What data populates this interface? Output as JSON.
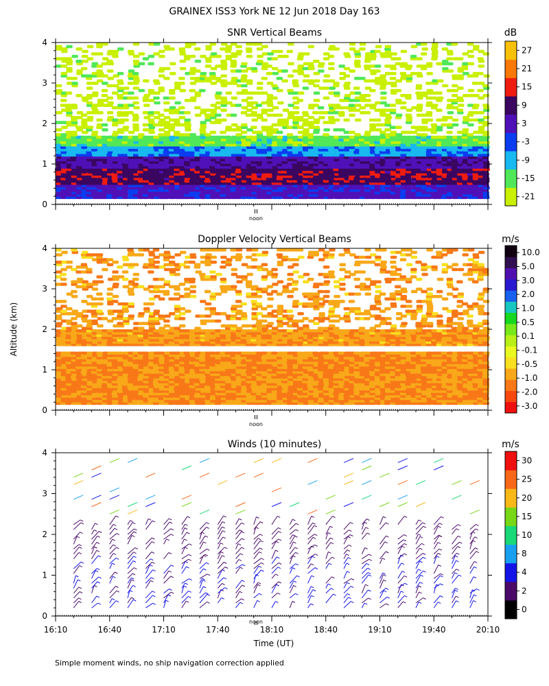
{
  "figure": {
    "title": "GRAINEX ISS3 York NE  12 Jun 2018 Day 163",
    "ylabel": "Altitude (km)",
    "xlabel": "Time (UT)",
    "footnote": "Simple moment winds, no ship navigation correction applied",
    "noon_label": "noon"
  },
  "colors": {
    "snr": [
      "#c8f000",
      "#50e858",
      "#18b8f0",
      "#0a3cf0",
      "#5010b8",
      "#3a0660",
      "#f01c10",
      "#f87808",
      "#f8c008"
    ],
    "doppler": [
      "#f01010",
      "#f84810",
      "#f87818",
      "#f8a818",
      "#f8e020",
      "#e8f820",
      "#b8f018",
      "#78e818",
      "#18d820",
      "#18c8c0",
      "#1860f0",
      "#2818d0",
      "#5010b0",
      "#301050",
      "#100010"
    ],
    "winds": [
      "#000000",
      "#4a0a6a",
      "#1414e8",
      "#18a0f0",
      "#18d878",
      "#78d818",
      "#f8b818",
      "#f86818",
      "#f01010"
    ]
  },
  "chart_data": [
    {
      "type": "heatmap",
      "title": "SNR Vertical Beams",
      "units": "dB",
      "x_ticks": [
        "16:10",
        "16:40",
        "17:10",
        "17:40",
        "18:10",
        "18:40",
        "19:10",
        "19:40",
        "20:10"
      ],
      "xlim": [
        "16:10",
        "20:10"
      ],
      "y_ticks": [
        0,
        1,
        2,
        3,
        4
      ],
      "ylim": [
        0,
        4
      ],
      "ylabel": "Altitude (km)",
      "colorbar_ticks": [
        "27",
        "21",
        "15",
        "9",
        "3",
        "-3",
        "-9",
        "-15",
        "-21"
      ],
      "colorbar_range": [
        -24,
        33
      ],
      "layers": [
        {
          "altitude_km": [
            0.15,
            0.5
          ],
          "snr_db": 3
        },
        {
          "altitude_km": [
            0.5,
            0.9
          ],
          "snr_db": 12
        },
        {
          "altitude_km": [
            0.9,
            1.2
          ],
          "snr_db": 6
        },
        {
          "altitude_km": [
            1.2,
            1.45
          ],
          "snr_db": -6
        },
        {
          "altitude_km": [
            1.45,
            1.7
          ],
          "snr_db": -15
        },
        {
          "altitude_km": [
            1.7,
            4.0
          ],
          "snr_db": -21
        }
      ]
    },
    {
      "type": "heatmap",
      "title": "Doppler Velocity Vertical Beams",
      "units": "m/s",
      "x_ticks": [
        "16:10",
        "16:40",
        "17:10",
        "17:40",
        "18:10",
        "18:40",
        "19:10",
        "19:40",
        "20:10"
      ],
      "xlim": [
        "16:10",
        "20:10"
      ],
      "y_ticks": [
        0,
        1,
        2,
        3,
        4
      ],
      "ylim": [
        0,
        4
      ],
      "colorbar_ticks": [
        "10.0",
        "5.0",
        "3.0",
        "2.0",
        "1.0",
        "0.5",
        "0.1",
        "-0.1",
        "-0.5",
        "-1.0",
        "-2.0",
        "-3.0"
      ],
      "colorbar_range": [
        -4,
        14
      ],
      "layers": [
        {
          "altitude_km": [
            0.15,
            1.45
          ],
          "velocity_ms": -0.5
        },
        {
          "altitude_km": [
            1.6,
            2.0
          ],
          "velocity_ms": -0.2
        },
        {
          "altitude_km": [
            2.0,
            4.0
          ],
          "velocity_ms": 0.0
        }
      ]
    },
    {
      "type": "scatter",
      "title": "Winds (10 minutes)",
      "units": "m/s",
      "x_ticks": [
        "16:10",
        "16:40",
        "17:10",
        "17:40",
        "18:10",
        "18:40",
        "19:10",
        "19:40",
        "20:10"
      ],
      "xlim": [
        "16:10",
        "20:10"
      ],
      "y_ticks": [
        0,
        1,
        2,
        3,
        4
      ],
      "ylim": [
        0,
        4
      ],
      "xlabel": "Time (UT)",
      "colorbar_ticks": [
        "30",
        "25",
        "20",
        "15",
        "10",
        "8",
        "4",
        "2",
        "0"
      ],
      "colorbar_range": [
        0,
        35
      ],
      "profile_times": [
        "16:20",
        "16:30",
        "16:40",
        "16:50",
        "17:00",
        "17:10",
        "17:20",
        "17:30",
        "17:40",
        "17:50",
        "18:00",
        "18:10",
        "18:20",
        "18:30",
        "18:40",
        "18:50",
        "19:00",
        "19:10",
        "19:20",
        "19:30",
        "19:40",
        "19:50",
        "20:00"
      ]
    }
  ]
}
